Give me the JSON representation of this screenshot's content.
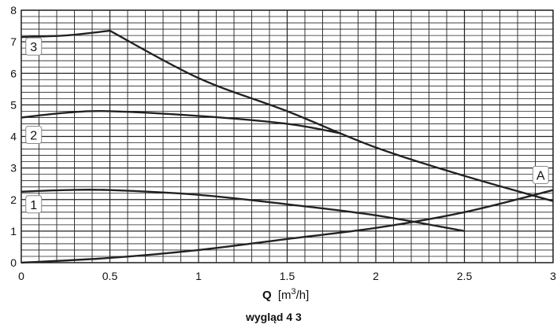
{
  "chart_data": {
    "type": "line",
    "xlabel_symbol": "Q",
    "xlabel_unit_prefix": "[m",
    "xlabel_unit_exp": "3",
    "xlabel_unit_suffix": "/h]",
    "caption": "wygląd 4 3",
    "xlim": [
      0,
      3
    ],
    "ylim": [
      0,
      8
    ],
    "x_ticks": [
      0,
      0.5,
      1,
      1.5,
      2,
      2.5,
      3
    ],
    "x_tick_labels": [
      "0",
      "0.5",
      "1",
      "1.5",
      "2",
      "2.5",
      "3"
    ],
    "y_ticks": [
      0,
      1,
      2,
      3,
      4,
      5,
      6,
      7,
      8
    ],
    "y_tick_labels": [
      "0",
      "1",
      "2",
      "3",
      "4",
      "5",
      "6",
      "7",
      "8"
    ],
    "grid": true,
    "colors": {
      "grid": "#222222",
      "curve": "#222222",
      "background": "#ffffff"
    },
    "series": [
      {
        "label": "1",
        "x": [
          0,
          0.25,
          0.5,
          1,
          1.5,
          2,
          2.5
        ],
        "y": [
          2.25,
          2.3,
          2.3,
          2.15,
          1.85,
          1.5,
          1.0
        ]
      },
      {
        "label": "2",
        "x": [
          0,
          0.25,
          0.5,
          1,
          1.5,
          1.8
        ],
        "y": [
          4.6,
          4.75,
          4.8,
          4.65,
          4.4,
          4.1
        ]
      },
      {
        "label": "3",
        "x": [
          0,
          0.25,
          0.5,
          1,
          1.5,
          2,
          2.5,
          3
        ],
        "y": [
          7.15,
          7.2,
          7.35,
          5.85,
          4.8,
          3.65,
          2.75,
          1.95
        ]
      },
      {
        "label": "A",
        "x": [
          0,
          0.5,
          1,
          1.5,
          2,
          2.5,
          3
        ],
        "y": [
          0.0,
          0.15,
          0.4,
          0.75,
          1.1,
          1.6,
          2.3
        ]
      }
    ]
  }
}
